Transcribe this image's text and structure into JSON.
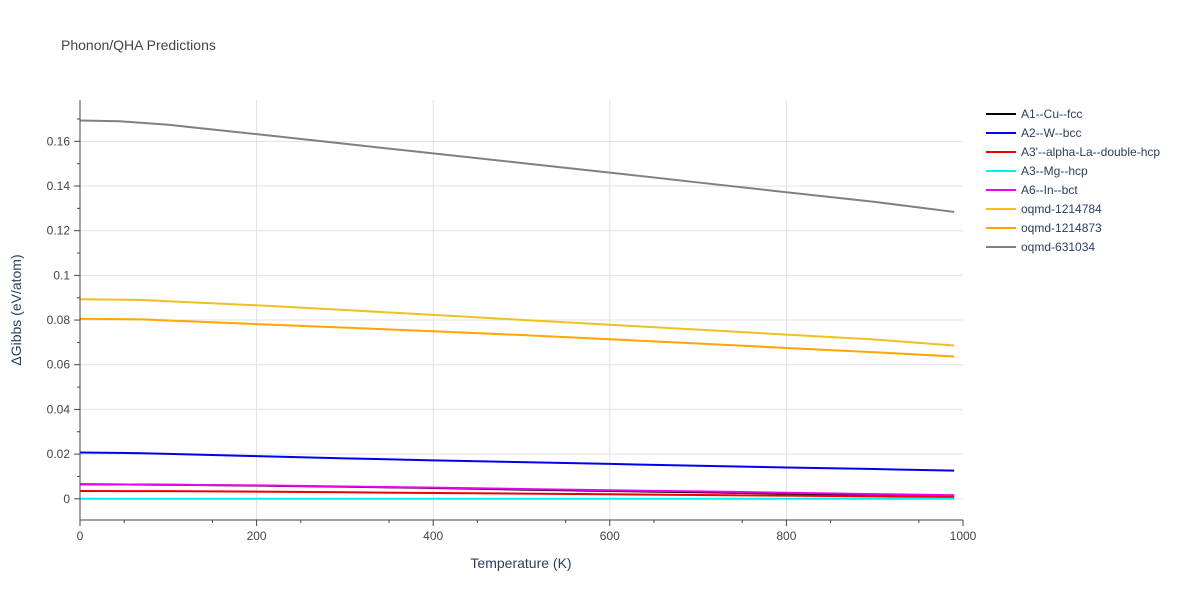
{
  "chart_data": {
    "type": "line",
    "title": "Phonon/QHA Predictions",
    "xlabel": "Temperature (K)",
    "ylabel": "ΔGibbs (eV/atom)",
    "xlim": [
      0,
      1000
    ],
    "ylim": [
      -0.0095,
      0.1785
    ],
    "x_ticks": [
      0,
      200,
      400,
      600,
      800,
      1000
    ],
    "x_tick_labels": [
      "0",
      "200",
      "400",
      "600",
      "800",
      "1000"
    ],
    "y_ticks": [
      0,
      0.02,
      0.04,
      0.06,
      0.08,
      0.1,
      0.12,
      0.14,
      0.16
    ],
    "y_tick_labels": [
      "0",
      "0.02",
      "0.04",
      "0.06",
      "0.08",
      "0.1",
      "0.12",
      "0.14",
      "0.16"
    ],
    "grid": true,
    "legend_position": "right",
    "series": [
      {
        "name": "A1--Cu--fcc",
        "color": "#000000",
        "x": [
          0,
          100,
          200,
          300,
          400,
          500,
          600,
          700,
          800,
          900,
          990
        ],
        "y": [
          0.0065,
          0.0063,
          0.0059,
          0.0054,
          0.0048,
          0.0041,
          0.0035,
          0.0029,
          0.0023,
          0.0017,
          0.0012
        ]
      },
      {
        "name": "A2--W--bcc",
        "color": "#0000ee",
        "x": [
          0,
          70,
          100,
          200,
          300,
          400,
          500,
          600,
          700,
          800,
          900,
          990
        ],
        "y": [
          0.0207,
          0.0204,
          0.0201,
          0.0191,
          0.0181,
          0.0172,
          0.0164,
          0.0156,
          0.0148,
          0.014,
          0.0133,
          0.0126
        ]
      },
      {
        "name": "A3'--alpha-La--double-hcp",
        "color": "#ee0000",
        "x": [
          0,
          100,
          200,
          300,
          400,
          500,
          600,
          700,
          800,
          900,
          990
        ],
        "y": [
          0.0035,
          0.0034,
          0.0032,
          0.0029,
          0.0026,
          0.0023,
          0.002,
          0.0017,
          0.0014,
          0.0011,
          0.0008
        ]
      },
      {
        "name": "A3--Mg--hcp",
        "color": "#00f0f0",
        "x": [
          0,
          200,
          400,
          600,
          800,
          990
        ],
        "y": [
          0.0,
          0.0,
          0.0,
          0.0,
          0.0,
          0.0
        ]
      },
      {
        "name": "A6--In--bct",
        "color": "#ee00ee",
        "x": [
          0,
          100,
          200,
          300,
          400,
          500,
          600,
          700,
          800,
          900,
          990
        ],
        "y": [
          0.0065,
          0.0063,
          0.006,
          0.0055,
          0.005,
          0.0044,
          0.0038,
          0.0033,
          0.0027,
          0.0021,
          0.0016
        ]
      },
      {
        "name": "oqmd-1214784",
        "color": "#f0c020",
        "x": [
          0,
          70,
          100,
          200,
          300,
          400,
          500,
          600,
          700,
          800,
          900,
          990
        ],
        "y": [
          0.0893,
          0.089,
          0.0884,
          0.0866,
          0.0845,
          0.0823,
          0.0801,
          0.0779,
          0.0757,
          0.0735,
          0.0713,
          0.0686
        ]
      },
      {
        "name": "oqmd-1214873",
        "color": "#ffa500",
        "x": [
          0,
          70,
          100,
          200,
          300,
          400,
          500,
          600,
          700,
          800,
          900,
          990
        ],
        "y": [
          0.0806,
          0.0803,
          0.0798,
          0.0782,
          0.0766,
          0.075,
          0.0733,
          0.0714,
          0.0695,
          0.0675,
          0.0656,
          0.0637
        ]
      },
      {
        "name": "oqmd-631034",
        "color": "#808080",
        "x": [
          0,
          45,
          100,
          200,
          300,
          400,
          500,
          600,
          700,
          800,
          900,
          990
        ],
        "y": [
          0.1693,
          0.169,
          0.1674,
          0.1632,
          0.1589,
          0.1546,
          0.1503,
          0.146,
          0.1416,
          0.1372,
          0.1329,
          0.1284
        ]
      }
    ]
  }
}
